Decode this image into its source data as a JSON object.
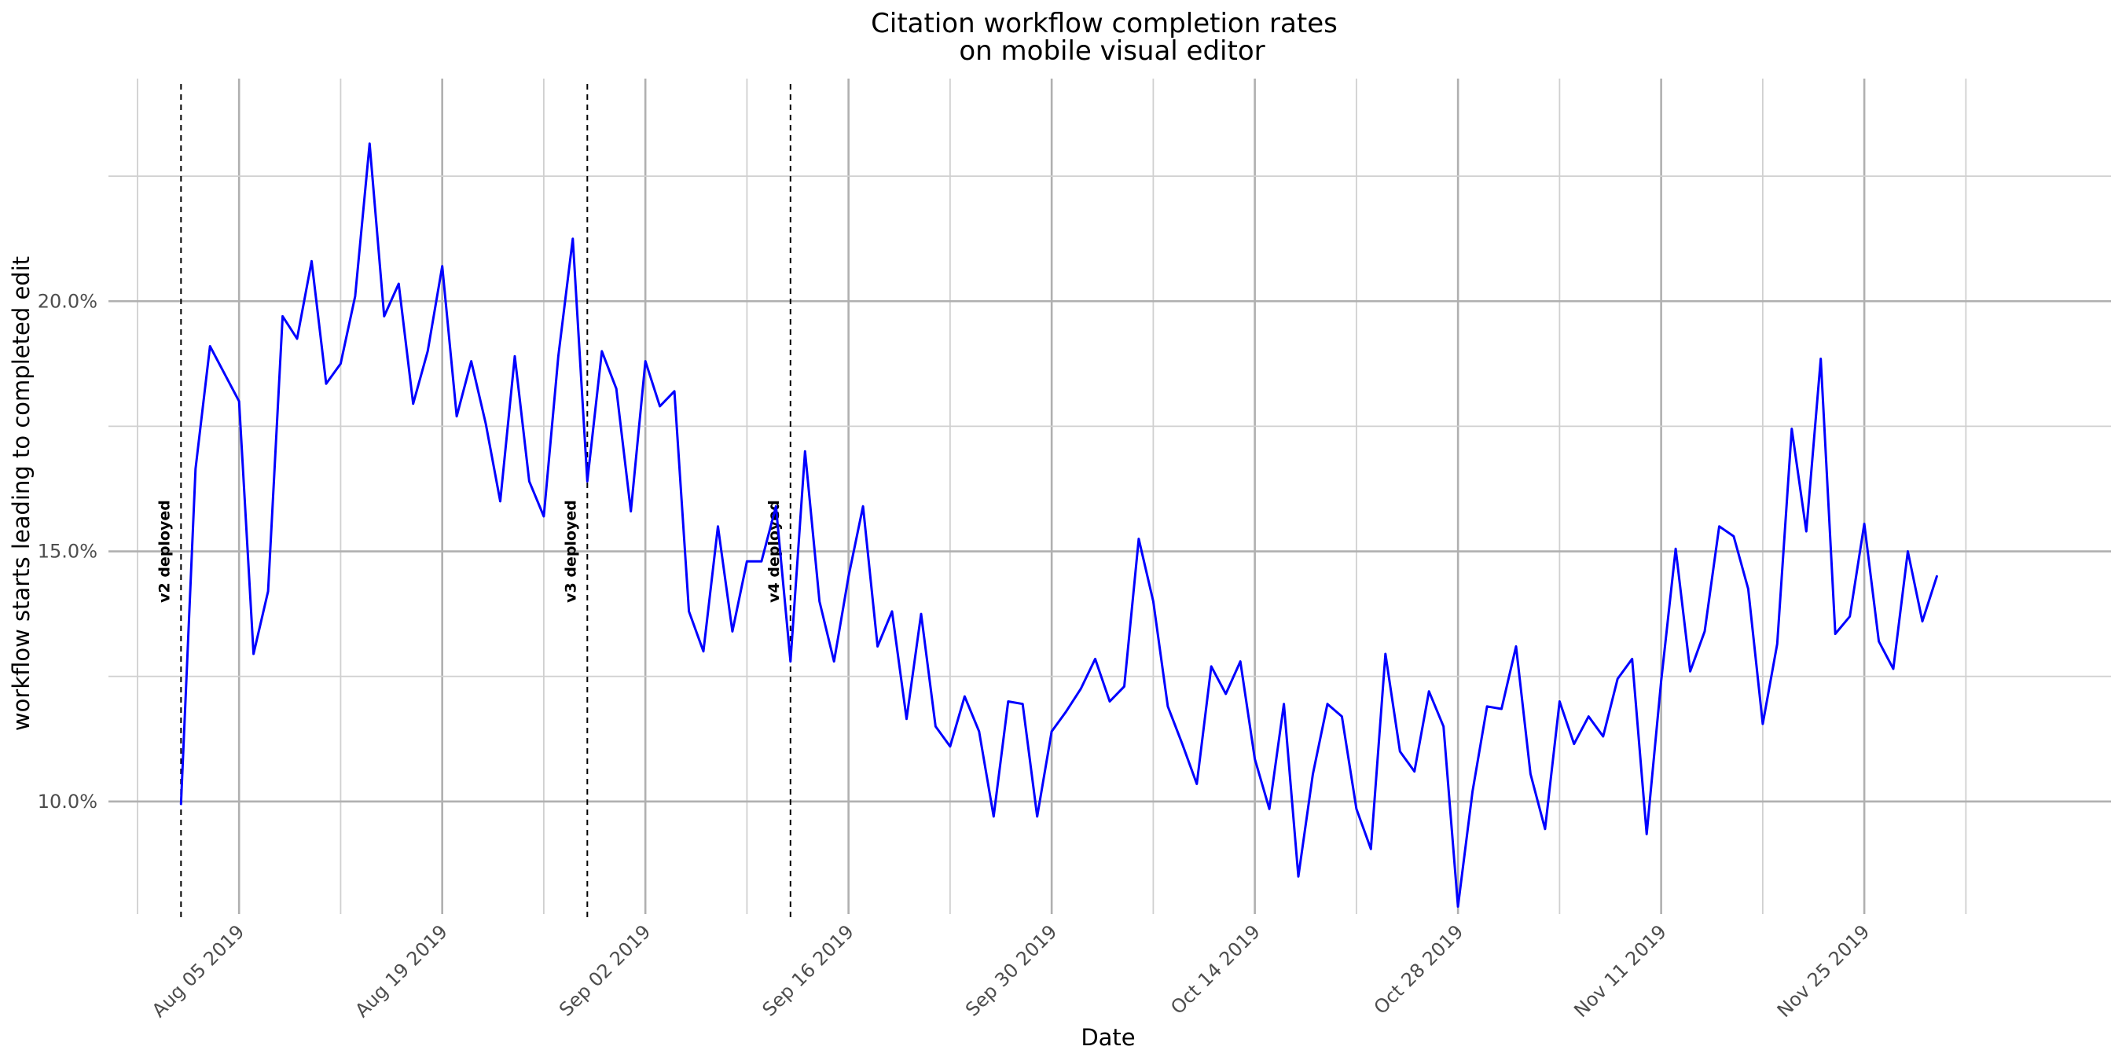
{
  "chart_data": {
    "type": "line",
    "title_line1": "Citation workflow completion rates",
    "title_line2": "on mobile visual editor",
    "xlabel": "Date",
    "ylabel": "workflow starts leading to completed edit",
    "x_start": "2019-08-01",
    "x_end": "2019-12-04",
    "xlim": [
      "2019-07-27",
      "2019-12-12"
    ],
    "ylim": [
      0.0775,
      0.2445
    ],
    "x_ticks": [
      "2019-08-05",
      "2019-08-19",
      "2019-09-02",
      "2019-09-16",
      "2019-09-30",
      "2019-10-14",
      "2019-10-28",
      "2019-11-11",
      "2019-11-25"
    ],
    "x_tick_labels": [
      "Aug 05 2019",
      "Aug 19 2019",
      "Sep 02 2019",
      "Sep 16 2019",
      "Sep 30 2019",
      "Oct 14 2019",
      "Oct 28 2019",
      "Nov 11 2019",
      "Nov 25 2019"
    ],
    "y_ticks": [
      0.1,
      0.15,
      0.2
    ],
    "y_tick_labels": [
      "10.0%",
      "15.0%",
      "20.0%"
    ],
    "grid": true,
    "line_color": "#0000ff",
    "series": [
      {
        "values": [
          0.0995,
          0.1665,
          0.191,
          0.1855,
          0.18,
          0.1295,
          0.142,
          0.197,
          0.1925,
          0.208,
          0.1835,
          0.1875,
          0.201,
          0.2315,
          0.197,
          0.2035,
          0.1795,
          0.19,
          0.207,
          0.177,
          0.188,
          0.1755,
          0.16,
          0.189,
          0.164,
          0.157,
          0.189,
          0.2125,
          0.164,
          0.19,
          0.1825,
          0.158,
          0.188,
          0.179,
          0.182,
          0.138,
          0.13,
          0.155,
          0.134,
          0.148,
          0.148,
          0.159,
          0.128,
          0.17,
          0.14,
          0.128,
          0.145,
          0.159,
          0.131,
          0.138,
          0.1165,
          0.1375,
          0.115,
          0.111,
          0.121,
          0.114,
          0.097,
          0.12,
          0.1195,
          0.097,
          0.114,
          0.118,
          0.1225,
          0.1285,
          0.12,
          0.123,
          0.1525,
          0.14,
          0.119,
          0.1115,
          0.1035,
          0.127,
          0.1215,
          0.128,
          0.1085,
          0.0985,
          0.1195,
          0.085,
          0.1055,
          0.1195,
          0.117,
          0.0985,
          0.0905,
          0.1295,
          0.11,
          0.106,
          0.122,
          0.115,
          0.079,
          0.102,
          0.119,
          0.1185,
          0.131,
          0.1055,
          0.0945,
          0.12,
          0.1115,
          0.117,
          0.113,
          0.1245,
          0.1285,
          0.0935,
          0.124,
          0.1505,
          0.126,
          0.134,
          0.155,
          0.153,
          0.1425,
          0.1155,
          0.1315,
          0.1745,
          0.154,
          0.1885,
          0.1335,
          0.137,
          0.1555,
          0.132,
          0.1265,
          0.15,
          0.136,
          0.145
        ]
      }
    ],
    "annotations": [
      {
        "date": "2019-08-01",
        "label": "v2 deployed"
      },
      {
        "date": "2019-08-29",
        "label": "v3 deployed"
      },
      {
        "date": "2019-09-12",
        "label": "v4 deployed"
      }
    ]
  }
}
